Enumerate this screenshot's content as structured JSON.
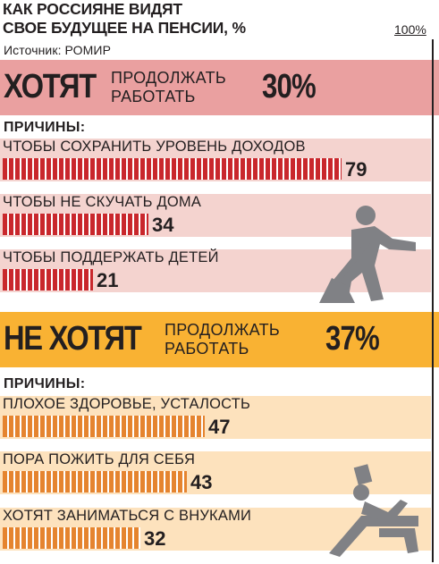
{
  "title_line1": "КАК РОССИЯНЕ ВИДЯТ",
  "title_line2": "СВОЕ БУДУЩЕЕ НА ПЕНСИИ, %",
  "source": "Источник: РОМИР",
  "scale_max_label": "100%",
  "colors": {
    "want_header": "#eaa0a0",
    "want_rows": "#f4d3cf",
    "want_bar": "#c9272c",
    "notwant_header": "#f9b233",
    "notwant_rows": "#fde2bd",
    "notwant_bar": "#e5842f",
    "icon": "#808185"
  },
  "chart_data": [
    {
      "type": "bar",
      "group": {
        "big": "ХОТЯТ",
        "sub_line1": "ПРОДОЛЖАТЬ",
        "sub_line2": "РАБОТАТЬ",
        "percent": "30%"
      },
      "reasons_label": "ПРИЧИНЫ:",
      "categories": [
        "ЧТОБЫ СОХРАНИТЬ УРОВЕНЬ ДОХОДОВ",
        "ЧТОБЫ НЕ СКУЧАТЬ ДОМА",
        "ЧТОБЫ ПОДДЕРЖАТЬ ДЕТЕЙ"
      ],
      "values": [
        79,
        34,
        21
      ],
      "ylim": [
        0,
        100
      ],
      "icon": "man-shoveling-icon"
    },
    {
      "type": "bar",
      "group": {
        "big": "НЕ ХОТЯТ",
        "sub_line1": "ПРОДОЛЖАТЬ",
        "sub_line2": "РАБОТАТЬ",
        "percent": "37%"
      },
      "reasons_label": "ПРИЧИНЫ:",
      "categories": [
        "ПЛОХОЕ ЗДОРОВЬЕ, УСТАЛОСТЬ",
        "ПОРА ПОЖИТЬ ДЛЯ СЕБЯ",
        "ХОТЯТ ЗАНИМАТЬСЯ С ВНУКАМИ"
      ],
      "values": [
        47,
        43,
        32
      ],
      "ylim": [
        0,
        100
      ],
      "icon": "man-reclining-icon"
    }
  ]
}
